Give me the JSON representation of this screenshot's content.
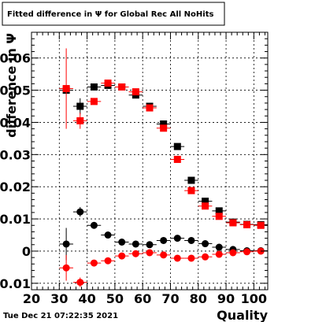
{
  "chart_data": {
    "type": "scatter",
    "title": "Fitted difference in  Ψ  for Global Rec All NoHits",
    "xlabel": "Quality",
    "ylabel": "difference in  Ψ",
    "xlim": [
      20,
      105
    ],
    "ylim": [
      -0.012,
      0.068
    ],
    "grid": true,
    "x_ticks": [
      20,
      30,
      40,
      50,
      60,
      70,
      80,
      90,
      100
    ],
    "x_tick_labels": [
      "20",
      "30",
      "40",
      "50",
      "60",
      "70",
      "80",
      "90",
      "100"
    ],
    "y_ticks": [
      -0.01,
      0,
      0.01,
      0.02,
      0.03,
      0.04,
      0.05,
      0.06
    ],
    "y_tick_labels": [
      "-0.01",
      "0",
      "0.01",
      "0.02",
      "0.03",
      "0.04",
      "0.05",
      "0.06"
    ],
    "x_halfwidth": 2.5,
    "series": [
      {
        "marker": "square",
        "color": "#000000",
        "x": [
          32.5,
          37.5,
          42.5,
          47.5,
          52.5,
          57.5,
          62.5,
          67.5,
          72.5,
          77.5,
          82.5,
          87.5,
          92.5,
          97.5,
          102.5
        ],
        "y": [
          0.05,
          0.045,
          0.051,
          0.0515,
          0.051,
          0.0485,
          0.045,
          0.0395,
          0.0325,
          0.022,
          0.0155,
          0.0125,
          0.009,
          0.0083,
          0.0082
        ],
        "yerr": [
          0.0,
          0.0025,
          0.0008,
          0.0006,
          0.0004,
          0.0004,
          0.0004,
          0.0004,
          0.0004,
          0.0004,
          0.0003,
          0.0003,
          0.0003,
          0.0003,
          0.0003
        ]
      },
      {
        "marker": "square",
        "color": "#ff0000",
        "x": [
          32.5,
          37.5,
          42.5,
          47.5,
          52.5,
          57.5,
          62.5,
          67.5,
          72.5,
          77.5,
          82.5,
          87.5,
          92.5,
          97.5,
          102.5
        ],
        "y": [
          0.0505,
          0.0405,
          0.0465,
          0.0522,
          0.051,
          0.0495,
          0.0445,
          0.0382,
          0.0285,
          0.0188,
          0.014,
          0.0108,
          0.0088,
          0.0082,
          0.008
        ],
        "yerr": [
          0.0125,
          0.0025,
          0.0008,
          0.0006,
          0.0004,
          0.0004,
          0.0004,
          0.0004,
          0.0004,
          0.0004,
          0.0003,
          0.0003,
          0.0003,
          0.0003,
          0.0003
        ]
      },
      {
        "marker": "circle",
        "color": "#000000",
        "x": [
          32.5,
          37.5,
          42.5,
          47.5,
          52.5,
          57.5,
          62.5,
          67.5,
          72.5,
          77.5,
          82.5,
          87.5,
          92.5,
          97.5,
          102.5
        ],
        "y": [
          0.0022,
          0.0122,
          0.008,
          0.005,
          0.0028,
          0.0022,
          0.002,
          0.0033,
          0.004,
          0.0033,
          0.0023,
          0.0012,
          0.0005,
          0.0001,
          0.0001
        ],
        "yerr": [
          0.005,
          0.0015,
          0.0008,
          0.0005,
          0.0004,
          0.0003,
          0.0003,
          0.0003,
          0.0003,
          0.0003,
          0.0003,
          0.0003,
          0.0003,
          0.0003,
          0.0003
        ]
      },
      {
        "marker": "circle",
        "color": "#ff0000",
        "x": [
          32.5,
          37.5,
          42.5,
          47.5,
          52.5,
          57.5,
          62.5,
          67.5,
          72.5,
          77.5,
          82.5,
          87.5,
          92.5,
          97.5,
          102.5
        ],
        "y": [
          -0.0052,
          -0.0097,
          -0.0037,
          -0.003,
          -0.0015,
          -0.0008,
          -0.0005,
          -0.0012,
          -0.0022,
          -0.0022,
          -0.0018,
          -0.001,
          -0.0005,
          -0.0002,
          0.0
        ],
        "yerr": [
          0.004,
          0.0015,
          0.0008,
          0.0005,
          0.0004,
          0.0003,
          0.0003,
          0.0003,
          0.0003,
          0.0003,
          0.0003,
          0.0003,
          0.0003,
          0.0003,
          0.0003
        ]
      }
    ]
  },
  "footer": {
    "timestamp": "Tue Dec 21 07:22:35 2021"
  }
}
